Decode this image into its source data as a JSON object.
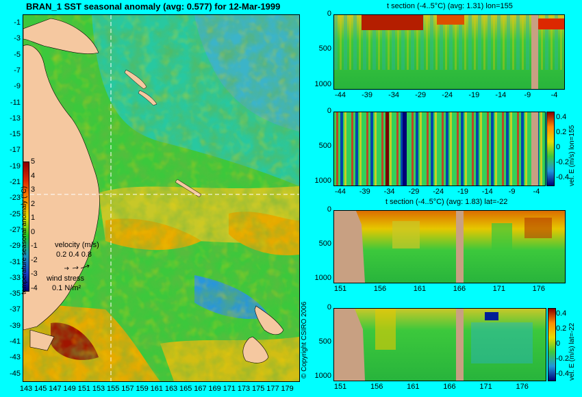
{
  "map": {
    "title": "BRAN_1 SST seasonal anomaly (avg: 0.577) for 12-Mar-1999",
    "y_ticks": [
      "-1",
      "-3",
      "-5",
      "-7",
      "-9",
      "-11",
      "-13",
      "-15",
      "-17",
      "-19",
      "-21",
      "-23",
      "-25",
      "-27",
      "-29",
      "-31",
      "-33",
      "-35",
      "-37",
      "-39",
      "-41",
      "-43",
      "-45"
    ],
    "x_ticks": [
      "143",
      "145",
      "147",
      "149",
      "151",
      "153",
      "155",
      "157",
      "159",
      "161",
      "163",
      "165",
      "167",
      "169",
      "171",
      "173",
      "175",
      "177",
      "179"
    ],
    "colorbar_ticks": [
      "5",
      "4",
      "3",
      "2",
      "1",
      "0",
      "-1",
      "-2",
      "-3",
      "-4"
    ],
    "colorbar_label": "temperature seasonal anomaly (°C)",
    "velocity_label": "velocity (m/s)",
    "velocity_scale": "0.2 0.4 0.8",
    "wind_label": "wind stress",
    "wind_scale": "0.1 N/m²",
    "copyright": "© Copyright CSIRO 2006",
    "colors": {
      "land": "#f5c8a0",
      "ocean_green": "#3cc83c",
      "ocean_teal": "#28c8a0",
      "warm": "#e6aa00",
      "hot": "#a01400",
      "cool": "#2896dc",
      "section_line": "#ffffff"
    }
  },
  "panels": [
    {
      "title": "t section (-4..5°C) (avg: 1.31) lon=155",
      "y_ticks": [
        "0",
        "500",
        "1000"
      ],
      "x_ticks": [
        "-44",
        "-39",
        "-34",
        "-29",
        "-24",
        "-19",
        "-14",
        "-9",
        "-4"
      ]
    },
    {
      "title": "",
      "y_ticks": [
        "0",
        "500",
        "1000"
      ],
      "x_ticks": [
        "-44",
        "-39",
        "-34",
        "-29",
        "-24",
        "-19",
        "-14",
        "-9",
        "-4"
      ],
      "colorbar_label": "vel. E (m/s) lon=155",
      "colorbar_ticks": [
        "0.4",
        "0.2",
        "0",
        "-0.2",
        "-0.4"
      ]
    },
    {
      "title": "t section (-4..5°C) (avg: 1.83) lat=-22",
      "y_ticks": [
        "0",
        "500",
        "1000"
      ],
      "x_ticks": [
        "151",
        "156",
        "161",
        "166",
        "171",
        "176"
      ]
    },
    {
      "title": "",
      "y_ticks": [
        "0",
        "500",
        "1000"
      ],
      "x_ticks": [
        "151",
        "156",
        "161",
        "166",
        "171",
        "176"
      ],
      "colorbar_label": "vel. E (m/s) lat=-22",
      "colorbar_ticks": [
        "0.4",
        "0.2",
        "0",
        "-0.2",
        "-0.4"
      ]
    }
  ]
}
